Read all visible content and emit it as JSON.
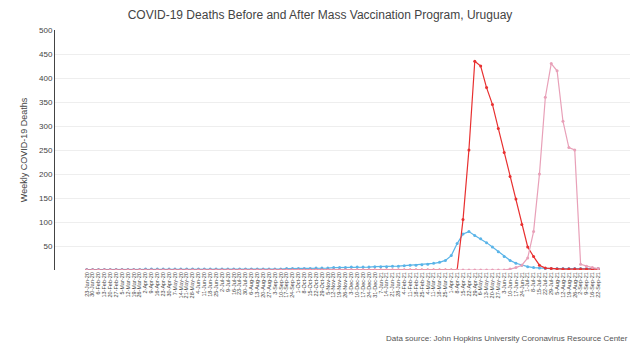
{
  "chart_data": {
    "type": "line",
    "title": "COVID-19 Deaths Before and After Mass Vaccination Program, Uruguay",
    "ylabel": "Weekly COVID-19 Deaths",
    "annotations": [
      "Data source: John Hopkins University Coronavirus Resource Center"
    ],
    "categories": [
      "23-Jan-20",
      "30-Jan-20",
      "6-Feb-20",
      "13-Feb-20",
      "20-Feb-20",
      "27-Feb-20",
      "5-Mar-20",
      "12-Mar-20",
      "19-Mar-20",
      "26-Mar-20",
      "2-Apr-20",
      "9-Apr-20",
      "16-Apr-20",
      "23-Apr-20",
      "30-Apr-20",
      "7-May-20",
      "14-May-20",
      "21-May-20",
      "28-May-20",
      "4-Jun-20",
      "11-Jun-20",
      "18-Jun-20",
      "25-Jun-20",
      "2-Jul-20",
      "9-Jul-20",
      "16-Jul-20",
      "23-Jul-20",
      "30-Jul-20",
      "6-Aug-20",
      "13-Aug-20",
      "20-Aug-20",
      "27-Aug-20",
      "3-Sep-20",
      "10-Sep-20",
      "17-Sep-20",
      "24-Sep-20",
      "1-Oct-20",
      "8-Oct-20",
      "15-Oct-20",
      "22-Oct-20",
      "29-Oct-20",
      "5-Nov-20",
      "12-Nov-20",
      "19-Nov-20",
      "26-Nov-20",
      "3-Dec-20",
      "10-Dec-20",
      "17-Dec-20",
      "24-Dec-20",
      "31-Dec-20",
      "7-Jan-21",
      "14-Jan-21",
      "21-Jan-21",
      "28-Jan-21",
      "4-Feb-21",
      "11-Feb-21",
      "18-Feb-21",
      "25-Feb-21",
      "4-Mar-21",
      "11-Mar-21",
      "18-Mar-21",
      "25-Mar-21",
      "1-Apr-21",
      "8-Apr-21",
      "15-Apr-21",
      "22-Apr-21",
      "29-Apr-21",
      "6-May-21",
      "13-May-21",
      "20-May-21",
      "27-May-21",
      "3-Jun-21",
      "10-Jun-21",
      "17-Jun-21",
      "24-Jun-21",
      "1-Jul-21",
      "8-Jul-21",
      "15-Jul-21",
      "22-Jul-21",
      "29-Jul-21",
      "5-Aug-21",
      "12-Aug-21",
      "19-Aug-21",
      "26-Aug-21",
      "2-Sep-21",
      "9-Sep-21",
      "16-Sep-21",
      "22-Sep-21"
    ],
    "series": [
      {
        "color": "#5ab4e8",
        "values": [
          1,
          1,
          1,
          1,
          1,
          1,
          1,
          1,
          1,
          1,
          2,
          2,
          2,
          2,
          2,
          2,
          2,
          2,
          2,
          2,
          2,
          2,
          2,
          2,
          2,
          2,
          2,
          2,
          2,
          2,
          2,
          2,
          2,
          2,
          3,
          3,
          3,
          3,
          3,
          4,
          4,
          4,
          5,
          5,
          5,
          6,
          6,
          6,
          6,
          7,
          7,
          7,
          8,
          8,
          9,
          10,
          10,
          11,
          12,
          14,
          16,
          20,
          30,
          55,
          75,
          80,
          72,
          65,
          57,
          48,
          38,
          28,
          20,
          14,
          10,
          7,
          5,
          4,
          3,
          3,
          3,
          3,
          3,
          3,
          3,
          3,
          3,
          3
        ]
      },
      {
        "color": "#e83030",
        "values": [
          0,
          0,
          0,
          0,
          0,
          0,
          0,
          0,
          0,
          0,
          0,
          0,
          0,
          0,
          0,
          0,
          0,
          0,
          0,
          0,
          0,
          0,
          0,
          0,
          0,
          0,
          0,
          0,
          0,
          0,
          0,
          0,
          0,
          0,
          0,
          0,
          0,
          0,
          0,
          0,
          0,
          0,
          0,
          0,
          0,
          0,
          0,
          0,
          0,
          0,
          0,
          0,
          0,
          0,
          0,
          0,
          0,
          0,
          0,
          0,
          0,
          0,
          0,
          0,
          105,
          250,
          435,
          425,
          380,
          345,
          295,
          245,
          195,
          148,
          95,
          48,
          28,
          10,
          4,
          3,
          2,
          2,
          2,
          2,
          2,
          2,
          2,
          2
        ]
      },
      {
        "color": "#e8a0b8",
        "values": [
          0,
          0,
          0,
          0,
          0,
          0,
          0,
          0,
          0,
          0,
          0,
          0,
          0,
          0,
          0,
          0,
          0,
          0,
          0,
          0,
          0,
          0,
          0,
          0,
          0,
          0,
          0,
          0,
          0,
          0,
          0,
          0,
          0,
          0,
          0,
          0,
          0,
          0,
          0,
          0,
          0,
          0,
          0,
          0,
          0,
          0,
          0,
          0,
          0,
          0,
          0,
          0,
          0,
          0,
          0,
          0,
          0,
          0,
          0,
          0,
          0,
          0,
          0,
          0,
          0,
          0,
          0,
          0,
          0,
          0,
          0,
          0,
          2,
          5,
          10,
          25,
          80,
          200,
          360,
          430,
          415,
          310,
          255,
          250,
          12,
          8,
          5,
          3
        ]
      }
    ],
    "marker": "circle",
    "ylim": [
      0,
      500
    ],
    "yticks": [
      50,
      100,
      150,
      200,
      250,
      300,
      350,
      400,
      450,
      500
    ],
    "grid": true
  }
}
